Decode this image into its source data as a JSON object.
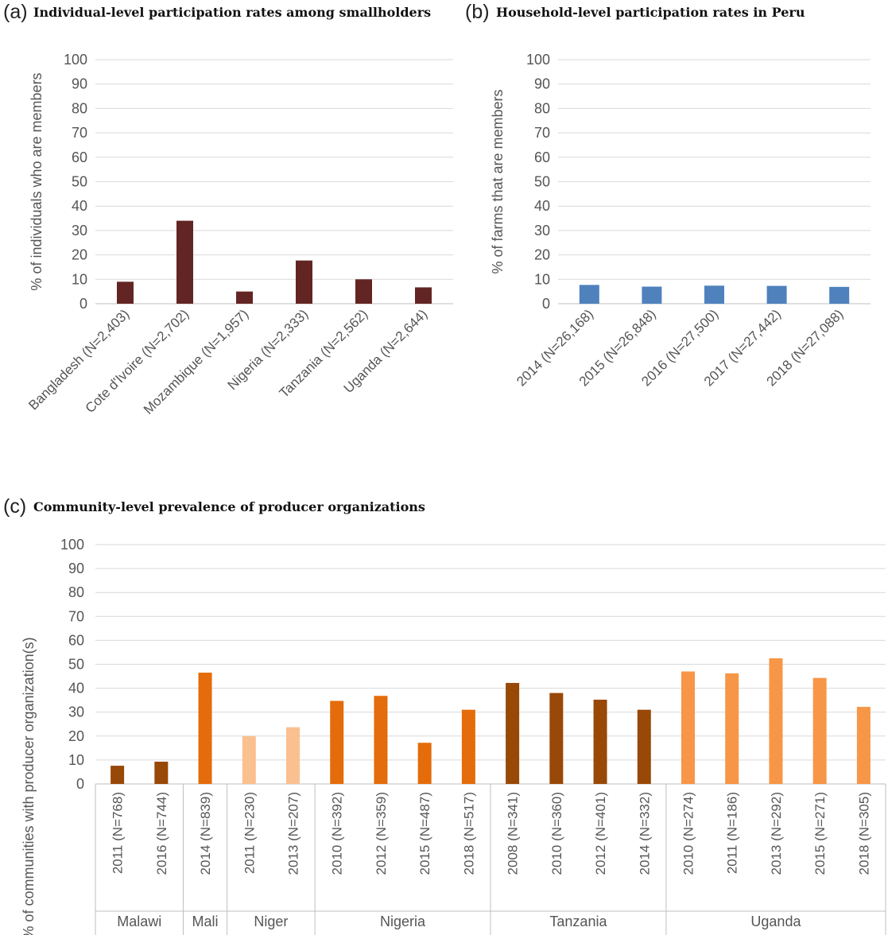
{
  "chart_data": [
    {
      "id": "a",
      "type": "bar",
      "panel": "(a)",
      "title": "Individual-level participation rates among smallholders",
      "ylabel": "% of individuals who are members",
      "ylim": [
        0,
        100
      ],
      "yticks": [
        0,
        10,
        20,
        30,
        40,
        50,
        60,
        70,
        80,
        90,
        100
      ],
      "grid": true,
      "color": "#632523",
      "categories": [
        "Bangladesh (N=2,403)",
        "Cote d'Ivoire (N=2,702)",
        "Mozambique (N=1,957)",
        "Nigeria (N=2,333)",
        "Tanzania (N=2,562)",
        "Uganda (N=2,644)"
      ],
      "values": [
        9,
        34,
        5,
        17.7,
        10,
        6.7
      ]
    },
    {
      "id": "b",
      "type": "bar",
      "panel": "(b)",
      "title": "Household-level participation rates in Peru",
      "ylabel": "% of farms that are members",
      "ylim": [
        0,
        100
      ],
      "yticks": [
        0,
        10,
        20,
        30,
        40,
        50,
        60,
        70,
        80,
        90,
        100
      ],
      "grid": true,
      "color": "#4f81bd",
      "categories": [
        "2014 (N=26,168)",
        "2015 (N=26,848)",
        "2016 (N=27,500)",
        "2017 (N=27,442)",
        "2018 (N=27,088)"
      ],
      "values": [
        7.7,
        7,
        7.4,
        7.3,
        6.9
      ]
    },
    {
      "id": "c",
      "type": "bar",
      "panel": "(c)",
      "title": "Community-level prevalence of producer organizations",
      "ylabel": "% of communities with producer organization(s)",
      "ylim": [
        0,
        100
      ],
      "yticks": [
        0,
        10,
        20,
        30,
        40,
        50,
        60,
        70,
        80,
        90,
        100
      ],
      "grid": true,
      "groups": [
        {
          "name": "Malawi",
          "color": "#984807",
          "categories": [
            "2011 (N=768)",
            "2016 (N=744)"
          ],
          "values": [
            7.6,
            9.3
          ]
        },
        {
          "name": "Mali",
          "color": "#e46c0a",
          "categories": [
            "2014 (N=839)"
          ],
          "values": [
            46.5
          ]
        },
        {
          "name": "Niger",
          "color": "#fac090",
          "categories": [
            "2011 (N=230)",
            "2013 (N=207)"
          ],
          "values": [
            20,
            23.7
          ]
        },
        {
          "name": "Nigeria",
          "color": "#e46c0a",
          "categories": [
            "2010 (N=392)",
            "2012 (N=359)",
            "2015 (N=487)",
            "2018 (N=517)"
          ],
          "values": [
            34.7,
            36.8,
            17.2,
            31
          ]
        },
        {
          "name": "Tanzania",
          "color": "#984807",
          "categories": [
            "2008 (N=341)",
            "2010 (N=360)",
            "2012 (N=401)",
            "2014 (N=332)"
          ],
          "values": [
            42.2,
            38,
            35.2,
            31
          ]
        },
        {
          "name": "Uganda",
          "color": "#f79646",
          "categories": [
            "2010 (N=274)",
            "2011 (N=186)",
            "2013 (N=292)",
            "2015 (N=271)",
            "2018 (N=305)"
          ],
          "values": [
            47,
            46.2,
            52.5,
            44.3,
            32.2
          ]
        }
      ]
    }
  ]
}
